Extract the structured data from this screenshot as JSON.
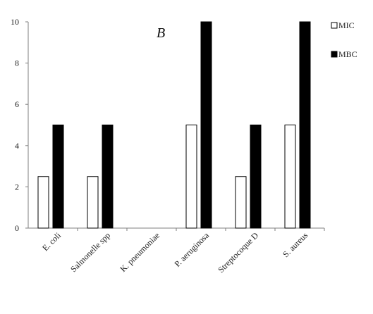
{
  "chart_data": {
    "type": "bar",
    "panel_label": "B",
    "categories": [
      "E. coli",
      "Salmonelle spp",
      "K. pneumoniae",
      "P. aeruginosa",
      "Streptocoque D",
      "S. aureus"
    ],
    "series": [
      {
        "name": "MIC",
        "values": [
          2.5,
          2.5,
          0,
          5,
          2.5,
          5
        ],
        "fill": "#ffffff",
        "stroke": "#000000"
      },
      {
        "name": "MBC",
        "values": [
          5,
          5,
          0,
          10,
          5,
          10
        ],
        "fill": "#000000",
        "stroke": "#000000"
      }
    ],
    "ylim": [
      0,
      10
    ],
    "yticks": [
      0,
      2,
      4,
      6,
      8,
      10
    ],
    "xlabel": "",
    "ylabel": "",
    "grid": false,
    "legend_position": "right"
  }
}
